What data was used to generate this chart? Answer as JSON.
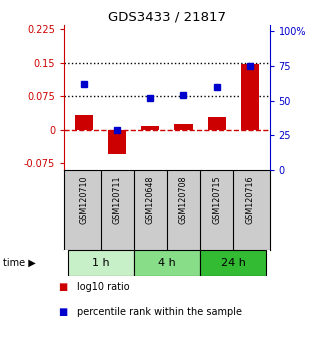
{
  "title": "GDS3433 / 21817",
  "samples": [
    "GSM120710",
    "GSM120711",
    "GSM120648",
    "GSM120708",
    "GSM120715",
    "GSM120716"
  ],
  "log10_ratio": [
    0.033,
    -0.055,
    0.008,
    0.012,
    0.028,
    0.148
  ],
  "percentile_rank": [
    0.62,
    0.29,
    0.52,
    0.54,
    0.6,
    0.75
  ],
  "time_groups": [
    {
      "label": "1 h",
      "samples": [
        0,
        1
      ],
      "color": "#c8f0c8"
    },
    {
      "label": "4 h",
      "samples": [
        2,
        3
      ],
      "color": "#88dd88"
    },
    {
      "label": "24 h",
      "samples": [
        4,
        5
      ],
      "color": "#33bb33"
    }
  ],
  "ylim_left": [
    -0.09,
    0.235
  ],
  "ylim_right": [
    0,
    1.047
  ],
  "yticks_left": [
    -0.075,
    0,
    0.075,
    0.15,
    0.225
  ],
  "yticks_left_labels": [
    "-0.075",
    "0",
    "0.075",
    "0.15",
    "0.225"
  ],
  "yticks_right": [
    0,
    0.25,
    0.5,
    0.75,
    1.0
  ],
  "yticks_right_labels": [
    "0",
    "25",
    "50",
    "75",
    "100%"
  ],
  "hlines": [
    0.075,
    0.15
  ],
  "bar_color": "#cc0000",
  "square_color": "#0000cc",
  "zero_line_color": "#cc0000",
  "legend_labels": [
    "log10 ratio",
    "percentile rank within the sample"
  ],
  "background_color": "#ffffff",
  "plot_bg_color": "#ffffff",
  "grey_bg": "#cccccc"
}
